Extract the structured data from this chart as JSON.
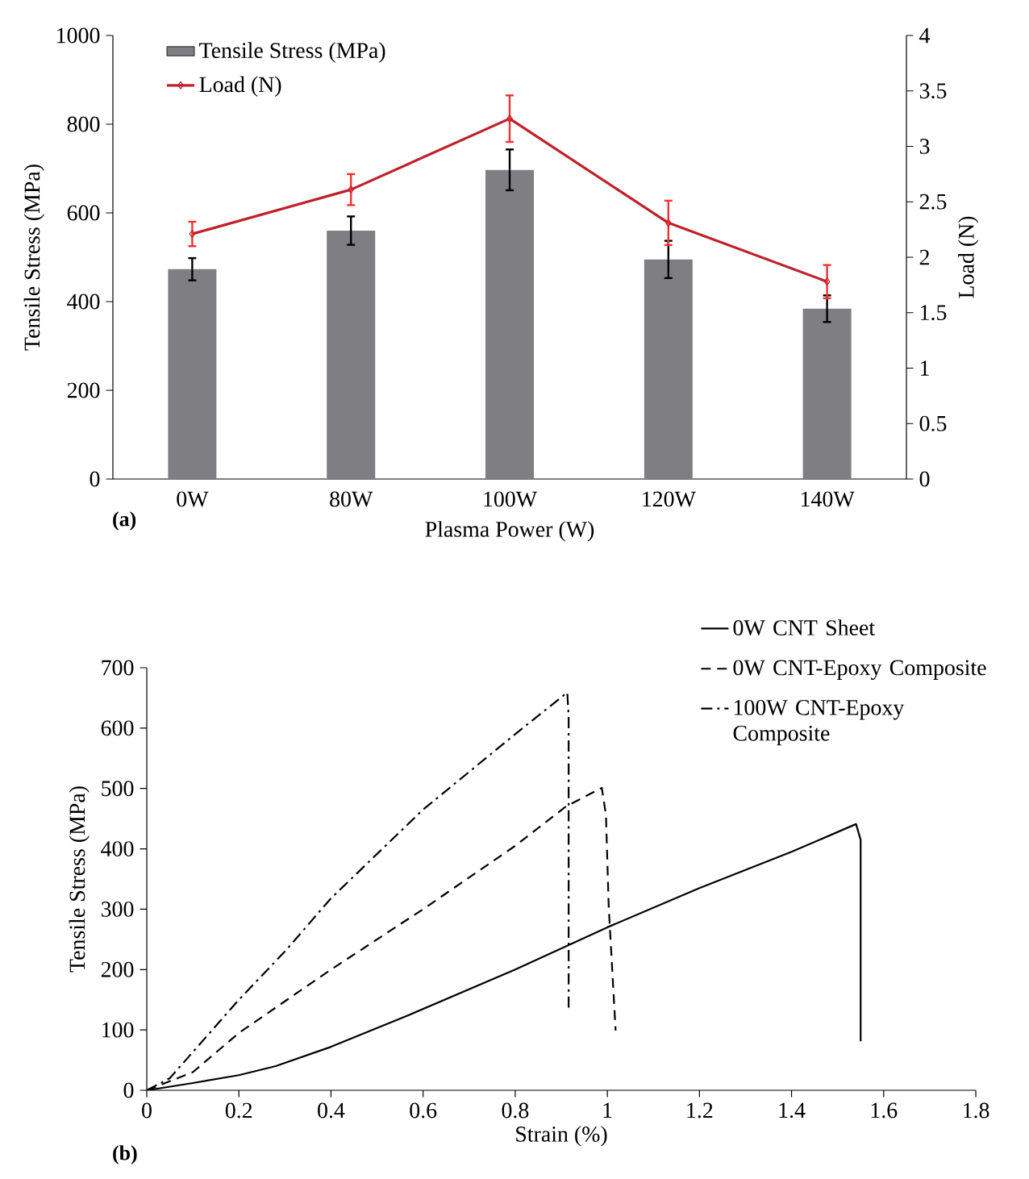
{
  "chart_data": [
    {
      "type": "bar",
      "categories": [
        "0W",
        "80W",
        "100W",
        "120W",
        "140W"
      ],
      "xlabel": "Plasma Power (W)",
      "ylabel": "Tensile Stress (MPa)",
      "y2label": "Load (N)",
      "ylim": [
        0,
        1000
      ],
      "yticks": [
        0,
        200,
        400,
        600,
        800,
        1000
      ],
      "y2lim": [
        0,
        4
      ],
      "y2ticks": [
        0,
        0.5,
        1,
        1.5,
        2,
        2.5,
        3,
        3.5,
        4
      ],
      "legend": "top left",
      "annotations": [
        "(a)"
      ],
      "series": [
        {
          "name": "Tensile Stress (MPa)",
          "color": "#7f7f83",
          "values": [
            473,
            560,
            697,
            495,
            384
          ],
          "errors": [
            25,
            32,
            46,
            42,
            30
          ]
        },
        {
          "name": "Load (N)",
          "type": "line",
          "axis": "y2",
          "marker": "diamond",
          "color": "#c0202a",
          "values": [
            2.21,
            2.61,
            3.25,
            2.31,
            1.78
          ],
          "errors": [
            0.11,
            0.14,
            0.21,
            0.2,
            0.15
          ]
        }
      ]
    },
    {
      "type": "line",
      "xlabel": "Strain (%)",
      "ylabel": "Tensile Stress (MPa)",
      "xlim": [
        0,
        1.8
      ],
      "xticks": [
        0,
        0.2,
        0.4,
        0.6,
        0.8,
        1,
        1.2,
        1.4,
        1.6,
        1.8
      ],
      "ylim": [
        0,
        700
      ],
      "yticks": [
        0,
        100,
        200,
        300,
        400,
        500,
        600,
        700
      ],
      "legend": "top right",
      "annotations": [
        "(b)"
      ],
      "series": [
        {
          "name": "0W CNT Sheet",
          "color": "#000000",
          "line_style": "solid",
          "x": [
            0,
            0.1,
            0.2,
            0.28,
            0.4,
            0.57,
            0.8,
            1.0,
            1.2,
            1.4,
            1.54,
            1.55,
            1.55
          ],
          "values": [
            0,
            12,
            25,
            40,
            72,
            125,
            200,
            270,
            335,
            395,
            441,
            415,
            81
          ]
        },
        {
          "name": "0W CNT-Epoxy Composite",
          "color": "#000000",
          "line_style": "dashed",
          "x": [
            0,
            0.1,
            0.2,
            0.4,
            0.6,
            0.8,
            0.91,
            0.988,
            0.997,
            1.003,
            1.018
          ],
          "values": [
            0,
            30,
            95,
            200,
            300,
            405,
            470,
            501,
            456,
            304,
            99
          ]
        },
        {
          "name": "100W CNT-Epoxy Composite",
          "color": "#000000",
          "line_style": "dashdot",
          "x": [
            0,
            0.05,
            0.2,
            0.3,
            0.4,
            0.6,
            0.8,
            0.913,
            0.916,
            0.916
          ],
          "values": [
            0,
            20,
            150,
            230,
            318,
            465,
            590,
            659,
            620,
            137
          ]
        }
      ]
    }
  ]
}
